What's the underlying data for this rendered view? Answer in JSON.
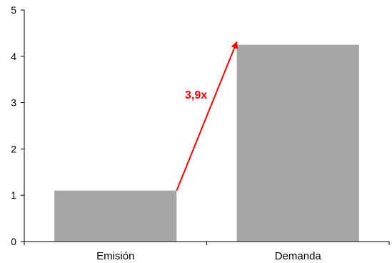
{
  "chart_data": {
    "type": "bar",
    "categories": [
      "Emisión",
      "Demanda"
    ],
    "values": [
      1.1,
      4.25
    ],
    "title": "",
    "xlabel": "",
    "ylabel": "",
    "ylim": [
      0,
      5
    ],
    "yticks": [
      "0",
      "1",
      "2",
      "3",
      "4",
      "5"
    ],
    "grid": false,
    "bar_color": "#a6a6a6",
    "annotation": {
      "text": "3,9x",
      "color": "#ff0000",
      "from_category": "Emisión",
      "to_category": "Demanda"
    }
  }
}
